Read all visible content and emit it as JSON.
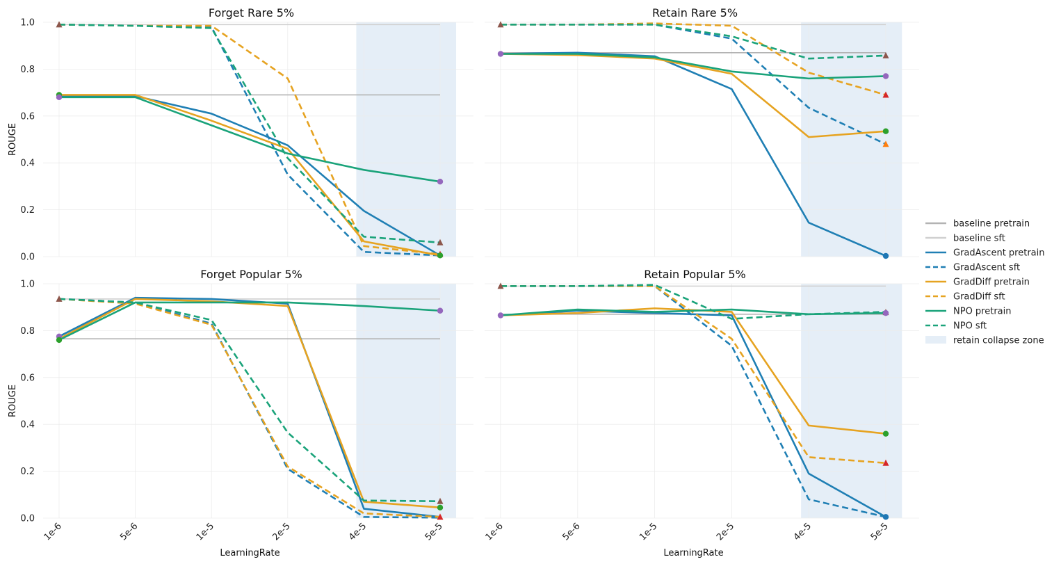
{
  "figure": {
    "legend_position": "center-right",
    "shade_legend_label": "retain collapse zone",
    "shade_color": "#dce8f4",
    "colors": {
      "GradAscent": "#1f7fb4",
      "GradDiff": "#e6a321",
      "NPO": "#1aa37a",
      "baseline_pretrain": "#b3b3b3",
      "baseline_sft": "#d0d0d0",
      "marker_triangle_brown": "#8c564b",
      "marker_triangle_red": "#d62728",
      "marker_triangle_orange": "#ff7f0e",
      "marker_circle_purple": "#9467bd",
      "marker_circle_green": "#2ca02c",
      "marker_circle_blue": "#1f77b4"
    }
  },
  "legend": [
    {
      "label": "baseline pretrain",
      "color": "#b3b3b3",
      "dash": "solid",
      "kind": "line"
    },
    {
      "label": "baseline sft",
      "color": "#d0d0d0",
      "dash": "solid",
      "kind": "line"
    },
    {
      "label": "GradAscent pretrain",
      "color": "#1f7fb4",
      "dash": "solid",
      "kind": "line"
    },
    {
      "label": "GradAscent sft",
      "color": "#1f7fb4",
      "dash": "dashed",
      "kind": "line"
    },
    {
      "label": "GradDiff pretrain",
      "color": "#e6a321",
      "dash": "solid",
      "kind": "line"
    },
    {
      "label": "GradDiff sft",
      "color": "#e6a321",
      "dash": "dashed",
      "kind": "line"
    },
    {
      "label": "NPO pretrain",
      "color": "#1aa37a",
      "dash": "solid",
      "kind": "line"
    },
    {
      "label": "NPO sft",
      "color": "#1aa37a",
      "dash": "dashed",
      "kind": "line"
    },
    {
      "label": "retain collapse zone",
      "color": "#dce8f4",
      "dash": "solid",
      "kind": "patch"
    }
  ],
  "chart_data": [
    {
      "type": "line",
      "title": "Forget Rare 5%",
      "xlabel": "",
      "ylabel": "ROUGE",
      "categories": [
        "1e-6",
        "5e-6",
        "1e-5",
        "2e-5",
        "4e-5",
        "5e-5"
      ],
      "show_x_ticks": false,
      "show_y_ticks": true,
      "ylim": [
        0,
        1.0
      ],
      "yticks": [
        "0.0",
        "0.2",
        "0.4",
        "0.6",
        "0.8",
        "1.0"
      ],
      "shade_from_category": 4,
      "baselines": [
        {
          "name": "baseline pretrain",
          "value": 0.69,
          "color": "#b3b3b3"
        },
        {
          "name": "baseline sft",
          "value": 0.99,
          "color": "#d0d0d0"
        }
      ],
      "series": [
        {
          "name": "GradAscent pretrain",
          "color": "#1f7fb4",
          "dash": "solid",
          "values": [
            0.685,
            0.685,
            0.61,
            0.475,
            0.195,
            0.005
          ]
        },
        {
          "name": "GradAscent sft",
          "color": "#1f7fb4",
          "dash": "dashed",
          "values": [
            0.99,
            0.985,
            0.98,
            0.35,
            0.02,
            0.005
          ]
        },
        {
          "name": "GradDiff pretrain",
          "color": "#e6a321",
          "dash": "solid",
          "values": [
            0.69,
            0.69,
            0.58,
            0.46,
            0.065,
            0.005
          ]
        },
        {
          "name": "GradDiff sft",
          "color": "#e6a321",
          "dash": "dashed",
          "values": [
            0.99,
            0.985,
            0.985,
            0.76,
            0.045,
            0.01
          ]
        },
        {
          "name": "NPO pretrain",
          "color": "#1aa37a",
          "dash": "solid",
          "values": [
            0.68,
            0.68,
            0.56,
            0.44,
            0.37,
            0.32
          ]
        },
        {
          "name": "NPO sft",
          "color": "#1aa37a",
          "dash": "dashed",
          "values": [
            0.99,
            0.985,
            0.975,
            0.42,
            0.085,
            0.06
          ]
        }
      ],
      "markers": [
        {
          "category": 0,
          "value": 0.99,
          "shape": "triangle",
          "color": "#8c564b"
        },
        {
          "category": 0,
          "value": 0.69,
          "shape": "circle",
          "color": "#2ca02c"
        },
        {
          "category": 0,
          "value": 0.68,
          "shape": "circle",
          "color": "#9467bd"
        },
        {
          "category": 5,
          "value": 0.32,
          "shape": "circle",
          "color": "#9467bd"
        },
        {
          "category": 5,
          "value": 0.06,
          "shape": "triangle",
          "color": "#8c564b"
        },
        {
          "category": 5,
          "value": 0.01,
          "shape": "triangle",
          "color": "#d62728"
        },
        {
          "category": 5,
          "value": 0.005,
          "shape": "circle",
          "color": "#2ca02c"
        }
      ]
    },
    {
      "type": "line",
      "title": "Retain Rare 5%",
      "xlabel": "",
      "ylabel": "",
      "categories": [
        "1e-6",
        "5e-6",
        "1e-5",
        "2e-5",
        "4e-5",
        "5e-5"
      ],
      "show_x_ticks": false,
      "show_y_ticks": false,
      "ylim": [
        0,
        1.0
      ],
      "yticks": [
        "0.0",
        "0.2",
        "0.4",
        "0.6",
        "0.8",
        "1.0"
      ],
      "shade_from_category": 4,
      "baselines": [
        {
          "name": "baseline pretrain",
          "value": 0.87,
          "color": "#b3b3b3"
        },
        {
          "name": "baseline sft",
          "value": 0.99,
          "color": "#d0d0d0"
        }
      ],
      "series": [
        {
          "name": "GradAscent pretrain",
          "color": "#1f7fb4",
          "dash": "solid",
          "values": [
            0.865,
            0.87,
            0.855,
            0.715,
            0.145,
            0.003
          ]
        },
        {
          "name": "GradAscent sft",
          "color": "#1f7fb4",
          "dash": "dashed",
          "values": [
            0.99,
            0.99,
            0.99,
            0.93,
            0.635,
            0.48
          ]
        },
        {
          "name": "GradDiff pretrain",
          "color": "#e6a321",
          "dash": "solid",
          "values": [
            0.865,
            0.86,
            0.845,
            0.78,
            0.51,
            0.535
          ]
        },
        {
          "name": "GradDiff sft",
          "color": "#e6a321",
          "dash": "dashed",
          "values": [
            0.99,
            0.99,
            0.995,
            0.985,
            0.785,
            0.69
          ]
        },
        {
          "name": "NPO pretrain",
          "color": "#1aa37a",
          "dash": "solid",
          "values": [
            0.865,
            0.865,
            0.85,
            0.79,
            0.76,
            0.77
          ]
        },
        {
          "name": "NPO sft",
          "color": "#1aa37a",
          "dash": "dashed",
          "values": [
            0.99,
            0.99,
            0.99,
            0.94,
            0.845,
            0.858
          ]
        }
      ],
      "markers": [
        {
          "category": 0,
          "value": 0.99,
          "shape": "triangle",
          "color": "#8c564b"
        },
        {
          "category": 0,
          "value": 0.865,
          "shape": "circle",
          "color": "#9467bd"
        },
        {
          "category": 5,
          "value": 0.858,
          "shape": "triangle",
          "color": "#8c564b"
        },
        {
          "category": 5,
          "value": 0.77,
          "shape": "circle",
          "color": "#9467bd"
        },
        {
          "category": 5,
          "value": 0.69,
          "shape": "triangle",
          "color": "#d62728"
        },
        {
          "category": 5,
          "value": 0.535,
          "shape": "circle",
          "color": "#2ca02c"
        },
        {
          "category": 5,
          "value": 0.48,
          "shape": "triangle",
          "color": "#ff7f0e"
        },
        {
          "category": 5,
          "value": 0.003,
          "shape": "circle",
          "color": "#1f77b4"
        }
      ]
    },
    {
      "type": "line",
      "title": "Forget Popular 5%",
      "xlabel": "LearningRate",
      "ylabel": "ROUGE",
      "categories": [
        "1e-6",
        "5e-6",
        "1e-5",
        "2e-5",
        "4e-5",
        "5e-5"
      ],
      "show_x_ticks": true,
      "show_y_ticks": true,
      "ylim": [
        0,
        1.0
      ],
      "yticks": [
        "0.0",
        "0.2",
        "0.4",
        "0.6",
        "0.8",
        "1.0"
      ],
      "shade_from_category": 4,
      "baselines": [
        {
          "name": "baseline pretrain",
          "value": 0.765,
          "color": "#b3b3b3"
        },
        {
          "name": "baseline sft",
          "value": 0.935,
          "color": "#d0d0d0"
        }
      ],
      "series": [
        {
          "name": "GradAscent pretrain",
          "color": "#1f7fb4",
          "dash": "solid",
          "values": [
            0.775,
            0.94,
            0.935,
            0.915,
            0.04,
            0.005
          ]
        },
        {
          "name": "GradAscent sft",
          "color": "#1f7fb4",
          "dash": "dashed",
          "values": [
            0.935,
            0.92,
            0.83,
            0.21,
            0.005,
            0.002
          ]
        },
        {
          "name": "GradDiff pretrain",
          "color": "#e6a321",
          "dash": "solid",
          "values": [
            0.765,
            0.935,
            0.925,
            0.905,
            0.07,
            0.045
          ]
        },
        {
          "name": "GradDiff sft",
          "color": "#e6a321",
          "dash": "dashed",
          "values": [
            0.935,
            0.915,
            0.825,
            0.22,
            0.02,
            0.005
          ]
        },
        {
          "name": "NPO pretrain",
          "color": "#1aa37a",
          "dash": "solid",
          "values": [
            0.76,
            0.92,
            0.92,
            0.92,
            0.905,
            0.885
          ]
        },
        {
          "name": "NPO sft",
          "color": "#1aa37a",
          "dash": "dashed",
          "values": [
            0.935,
            0.92,
            0.845,
            0.365,
            0.075,
            0.072
          ]
        }
      ],
      "markers": [
        {
          "category": 0,
          "value": 0.935,
          "shape": "triangle",
          "color": "#8c564b"
        },
        {
          "category": 0,
          "value": 0.775,
          "shape": "circle",
          "color": "#9467bd"
        },
        {
          "category": 0,
          "value": 0.76,
          "shape": "circle",
          "color": "#2ca02c"
        },
        {
          "category": 5,
          "value": 0.885,
          "shape": "circle",
          "color": "#9467bd"
        },
        {
          "category": 5,
          "value": 0.072,
          "shape": "triangle",
          "color": "#8c564b"
        },
        {
          "category": 5,
          "value": 0.045,
          "shape": "circle",
          "color": "#2ca02c"
        },
        {
          "category": 5,
          "value": 0.005,
          "shape": "triangle",
          "color": "#d62728"
        }
      ]
    },
    {
      "type": "line",
      "title": "Retain Popular 5%",
      "xlabel": "LearningRate",
      "ylabel": "",
      "categories": [
        "1e-6",
        "5e-6",
        "1e-5",
        "2e-5",
        "4e-5",
        "5e-5"
      ],
      "show_x_ticks": true,
      "show_y_ticks": false,
      "ylim": [
        0,
        1.0
      ],
      "yticks": [
        "0.0",
        "0.2",
        "0.4",
        "0.6",
        "0.8",
        "1.0"
      ],
      "shade_from_category": 4,
      "baselines": [
        {
          "name": "baseline pretrain",
          "value": 0.87,
          "color": "#b3b3b3"
        },
        {
          "name": "baseline sft",
          "value": 0.99,
          "color": "#d0d0d0"
        }
      ],
      "series": [
        {
          "name": "GradAscent pretrain",
          "color": "#1f7fb4",
          "dash": "solid",
          "values": [
            0.865,
            0.885,
            0.875,
            0.865,
            0.19,
            0.005
          ]
        },
        {
          "name": "GradAscent sft",
          "color": "#1f7fb4",
          "dash": "dashed",
          "values": [
            0.99,
            0.99,
            0.99,
            0.735,
            0.08,
            0.005
          ]
        },
        {
          "name": "GradDiff pretrain",
          "color": "#e6a321",
          "dash": "solid",
          "values": [
            0.865,
            0.875,
            0.895,
            0.88,
            0.395,
            0.36
          ]
        },
        {
          "name": "GradDiff sft",
          "color": "#e6a321",
          "dash": "dashed",
          "values": [
            0.99,
            0.99,
            0.99,
            0.765,
            0.26,
            0.235
          ]
        },
        {
          "name": "NPO pretrain",
          "color": "#1aa37a",
          "dash": "solid",
          "values": [
            0.865,
            0.89,
            0.88,
            0.89,
            0.87,
            0.875
          ]
        },
        {
          "name": "NPO sft",
          "color": "#1aa37a",
          "dash": "dashed",
          "values": [
            0.99,
            0.99,
            0.995,
            0.85,
            0.87,
            0.88
          ]
        }
      ],
      "markers": [
        {
          "category": 0,
          "value": 0.99,
          "shape": "triangle",
          "color": "#8c564b"
        },
        {
          "category": 0,
          "value": 0.865,
          "shape": "circle",
          "color": "#9467bd"
        },
        {
          "category": 5,
          "value": 0.878,
          "shape": "triangle",
          "color": "#8c564b"
        },
        {
          "category": 5,
          "value": 0.875,
          "shape": "circle",
          "color": "#9467bd"
        },
        {
          "category": 5,
          "value": 0.36,
          "shape": "circle",
          "color": "#2ca02c"
        },
        {
          "category": 5,
          "value": 0.235,
          "shape": "triangle",
          "color": "#d62728"
        },
        {
          "category": 5,
          "value": 0.005,
          "shape": "circle",
          "color": "#1f77b4"
        }
      ]
    }
  ]
}
